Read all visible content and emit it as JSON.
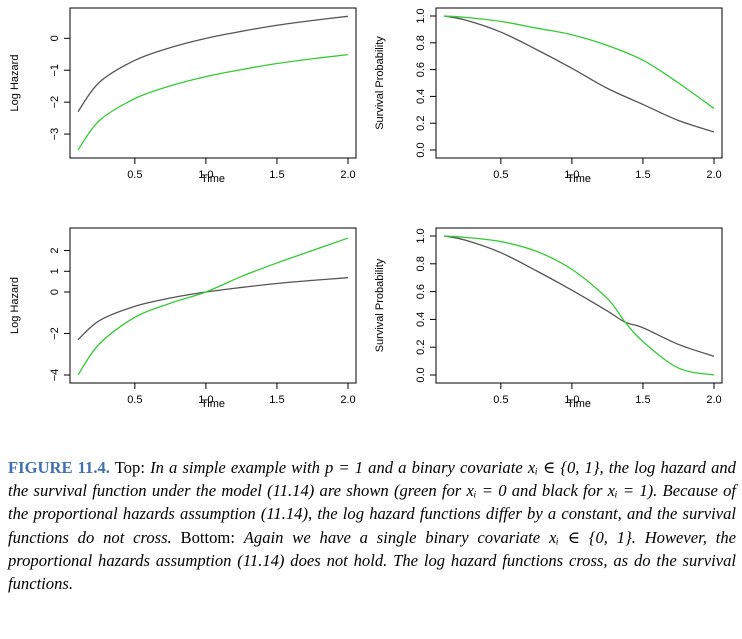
{
  "chart_data": [
    {
      "type": "line",
      "title": "",
      "xlabel": "Time",
      "ylabel": "Log Hazard",
      "xlim": [
        0.1,
        2.0
      ],
      "ylim": [
        -3.5,
        0.7
      ],
      "xticks": [
        "0.5",
        "1.0",
        "1.5",
        "2.0"
      ],
      "yticks": [
        "0",
        "−1",
        "−2",
        "−3"
      ],
      "ytick_values": [
        0,
        -1,
        -2,
        -3
      ],
      "x": [
        0.1,
        0.25,
        0.5,
        0.75,
        1.0,
        1.25,
        1.5,
        1.75,
        2.0
      ],
      "series": [
        {
          "color": "#555555",
          "values": [
            -2.3,
            -1.38,
            -0.69,
            -0.29,
            0.0,
            0.22,
            0.41,
            0.56,
            0.69
          ]
        },
        {
          "color": "#33cc33",
          "values": [
            -3.5,
            -2.58,
            -1.89,
            -1.49,
            -1.2,
            -0.98,
            -0.79,
            -0.64,
            -0.51
          ]
        }
      ]
    },
    {
      "type": "line",
      "title": "",
      "xlabel": "Time",
      "ylabel": "Survival Probability",
      "xlim": [
        0.1,
        2.0
      ],
      "ylim": [
        0.0,
        1.0
      ],
      "xticks": [
        "0.5",
        "1.0",
        "1.5",
        "2.0"
      ],
      "yticks": [
        "0.0",
        "0.2",
        "0.4",
        "0.6",
        "0.8",
        "1.0"
      ],
      "ytick_values": [
        0.0,
        0.2,
        0.4,
        0.6,
        0.8,
        1.0
      ],
      "x": [
        0.1,
        0.25,
        0.5,
        0.75,
        1.0,
        1.25,
        1.5,
        1.75,
        2.0
      ],
      "series": [
        {
          "color": "#555555",
          "values": [
            1.0,
            0.97,
            0.88,
            0.75,
            0.61,
            0.46,
            0.34,
            0.22,
            0.135
          ]
        },
        {
          "color": "#33cc33",
          "values": [
            1.0,
            0.99,
            0.96,
            0.91,
            0.86,
            0.78,
            0.67,
            0.5,
            0.31
          ]
        }
      ]
    },
    {
      "type": "line",
      "title": "",
      "xlabel": "Time",
      "ylabel": "Log Hazard",
      "xlim": [
        0.1,
        2.0
      ],
      "ylim": [
        -4.0,
        2.7
      ],
      "xticks": [
        "0.5",
        "1.0",
        "1.5",
        "2.0"
      ],
      "yticks": [
        "2",
        "1",
        "0",
        "−2",
        "−4"
      ],
      "ytick_values": [
        2,
        1,
        0,
        -2,
        -4
      ],
      "x": [
        0.1,
        0.25,
        0.5,
        0.75,
        1.0,
        1.25,
        1.5,
        1.75,
        2.0
      ],
      "series": [
        {
          "color": "#555555",
          "values": [
            -2.3,
            -1.38,
            -0.69,
            -0.29,
            0.0,
            0.22,
            0.41,
            0.56,
            0.69
          ]
        },
        {
          "color": "#33cc33",
          "values": [
            -4.0,
            -2.5,
            -1.22,
            -0.54,
            0.0,
            0.75,
            1.4,
            2.0,
            2.6
          ]
        }
      ]
    },
    {
      "type": "line",
      "title": "",
      "xlabel": "Time",
      "ylabel": "Survival Probability",
      "xlim": [
        0.1,
        2.0
      ],
      "ylim": [
        0.0,
        1.0
      ],
      "xticks": [
        "0.5",
        "1.0",
        "1.5",
        "2.0"
      ],
      "yticks": [
        "0.0",
        "0.2",
        "0.4",
        "0.6",
        "0.8",
        "1.0"
      ],
      "ytick_values": [
        0.0,
        0.2,
        0.4,
        0.6,
        0.8,
        1.0
      ],
      "x": [
        0.1,
        0.25,
        0.5,
        0.75,
        1.0,
        1.25,
        1.375,
        1.5,
        1.75,
        2.0
      ],
      "series": [
        {
          "color": "#555555",
          "values": [
            1.0,
            0.97,
            0.88,
            0.75,
            0.61,
            0.46,
            0.38,
            0.34,
            0.22,
            0.135
          ]
        },
        {
          "color": "#33cc33",
          "values": [
            1.0,
            0.99,
            0.96,
            0.89,
            0.76,
            0.55,
            0.38,
            0.24,
            0.05,
            0.0
          ]
        }
      ]
    }
  ],
  "caption": {
    "label": "FIGURE 11.4.",
    "line1_roman_top": "Top:",
    "line1_italic": "In a simple example with p = 1 and a binary covariate",
    "line2": "xᵢ ∈ {0, 1}, the log hazard and the survival function under the model (11.14)",
    "line3": "are shown (green for xᵢ = 0 and black for xᵢ = 1). Because of the proportional",
    "line4": "hazards assumption (11.14), the log hazard functions differ by a constant, and the",
    "line5_italic": "survival functions do not cross.",
    "line5_roman_bottom": "Bottom:",
    "line5_italic_b": "Again we have a single binary covariate",
    "line6": "xᵢ ∈ {0, 1}. However, the proportional hazards assumption (11.14) does not hold.",
    "line7": "The log hazard functions cross, as do the survival functions."
  }
}
